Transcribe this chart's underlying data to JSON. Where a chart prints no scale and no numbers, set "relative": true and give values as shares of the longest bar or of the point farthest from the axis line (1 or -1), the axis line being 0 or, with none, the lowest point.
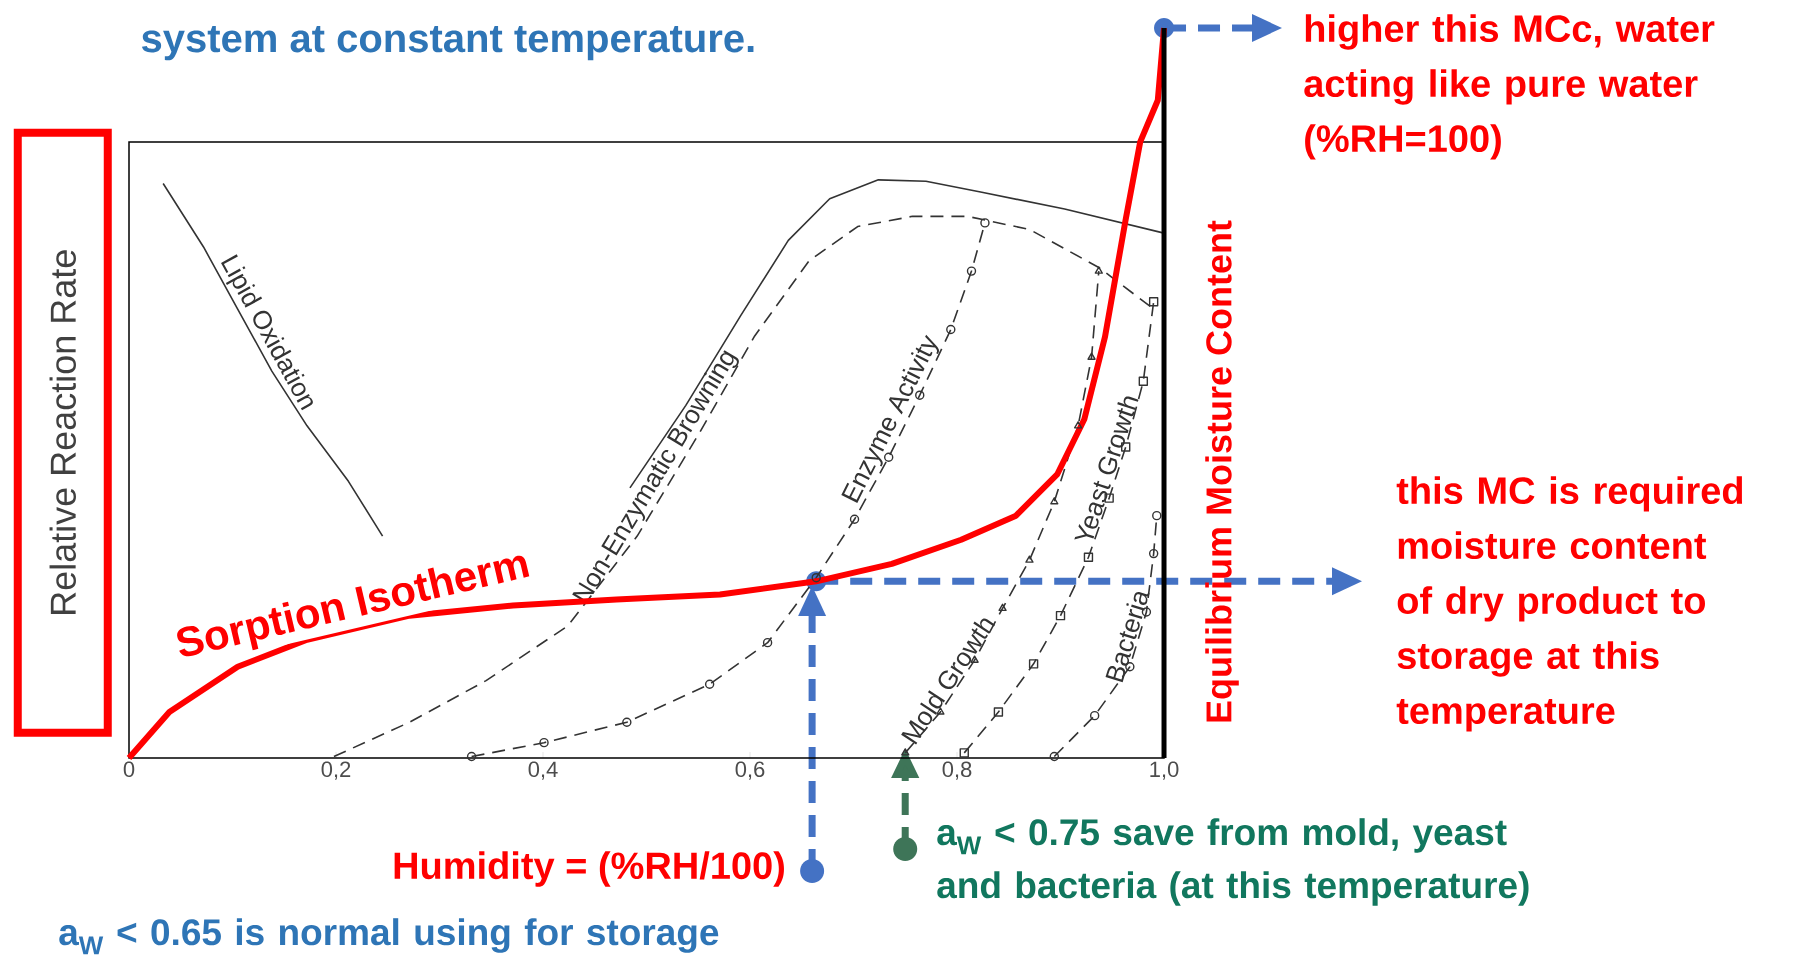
{
  "chart_data": {
    "type": "line",
    "relative": true,
    "title": "system at constant temperature.",
    "ylabel": "Relative Reaction Rate",
    "y2label": "Equilibrium Moisture Content",
    "xlim": [
      0,
      1.0
    ],
    "xticks": [
      0,
      {
        "value": 0.2,
        "label": "0,2"
      },
      {
        "value": 0.4,
        "label": "0,4"
      },
      {
        "value": 0.6,
        "label": "0,6"
      },
      {
        "value": 0.8,
        "label": "0,8"
      },
      {
        "value": 1.0,
        "label": "1,0"
      }
    ],
    "series": [
      {
        "name": "Lipid Oxidation",
        "color": "#333333",
        "marker": "none",
        "line_style": "solid",
        "x": [
          0.033,
          0.072,
          0.105,
          0.138,
          0.172,
          0.212,
          0.245,
          0.36,
          0.484,
          0.538,
          0.591,
          0.637,
          0.677,
          0.724,
          0.77,
          0.824,
          0.904,
          1.0
        ],
        "values": [
          0.787,
          0.7,
          0.615,
          0.53,
          0.455,
          0.379,
          0.304,
          null,
          0.37,
          0.483,
          0.606,
          0.709,
          0.766,
          0.792,
          0.79,
          0.775,
          0.752,
          0.719
        ]
      },
      {
        "name": "Non-Enzymatic Browning",
        "color": "#333333",
        "marker": "none",
        "line_style": "dashed",
        "x": [
          0.198,
          0.271,
          0.345,
          0.424,
          0.491,
          0.551,
          0.604,
          0.657,
          0.704,
          0.757,
          0.81,
          0.87,
          0.937,
          0.99
        ],
        "values": [
          0.002,
          0.049,
          0.106,
          0.181,
          0.304,
          0.445,
          0.577,
          0.681,
          0.728,
          0.742,
          0.742,
          0.724,
          0.672,
          0.615
        ]
      },
      {
        "name": "Enzyme Activity",
        "color": "#333333",
        "marker": "circle",
        "line_style": "dashed",
        "x": [
          0.331,
          0.401,
          0.481,
          0.561,
          0.617,
          0.664,
          0.701,
          0.734,
          0.764,
          0.794,
          0.814,
          0.827
        ],
        "values": [
          0.002,
          0.021,
          0.049,
          0.101,
          0.158,
          0.247,
          0.327,
          0.412,
          0.497,
          0.587,
          0.667,
          0.733
        ]
      },
      {
        "name": "Mold Growth",
        "color": "#333333",
        "marker": "triangle",
        "line_style": "dashed",
        "x": [
          0.75,
          0.784,
          0.817,
          0.844,
          0.87,
          0.894,
          0.917,
          0.93,
          0.937
        ],
        "values": [
          0.007,
          0.063,
          0.134,
          0.205,
          0.271,
          0.351,
          0.455,
          0.549,
          0.667
        ]
      },
      {
        "name": "Yeast Growth",
        "color": "#333333",
        "marker": "square",
        "line_style": "dashed",
        "x": [
          0.807,
          0.84,
          0.874,
          0.9,
          0.927,
          0.947,
          0.963,
          0.98,
          0.99
        ],
        "values": [
          0.007,
          0.063,
          0.129,
          0.195,
          0.275,
          0.356,
          0.426,
          0.516,
          0.625
        ]
      },
      {
        "name": "Bacteria",
        "color": "#333333",
        "marker": "circle",
        "line_style": "dashed",
        "x": [
          0.894,
          0.933,
          0.967,
          0.983,
          0.99,
          0.993
        ],
        "values": [
          0.002,
          0.058,
          0.125,
          0.2,
          0.28,
          0.332
        ]
      },
      {
        "name": "Sorption Isotherm",
        "color": "#ff0000",
        "marker": "none",
        "line_style": "solid",
        "x": [
          0,
          0.039,
          0.105,
          0.172,
          0.271,
          0.371,
          0.471,
          0.571,
          0.664,
          0.737,
          0.804,
          0.857,
          0.897,
          0.923,
          0.943,
          0.963,
          0.977,
          0.994,
          1.0
        ],
        "values": [
          0,
          0.063,
          0.125,
          0.162,
          0.195,
          0.209,
          0.217,
          0.224,
          0.242,
          0.266,
          0.299,
          0.332,
          0.389,
          0.464,
          0.577,
          0.738,
          0.844,
          0.901,
          1.0
        ]
      }
    ],
    "ref_lines": [
      {
        "axis": "y",
        "value": 1.0,
        "label": "higher this MCc, water acting like pure water (%RH=100)",
        "color": "#4472c4",
        "line_style": "dashed"
      },
      {
        "axis": "y",
        "value": 0.242,
        "label": "this MC is required moisture content of dry product to storage at this temperature",
        "color": "#4472c4",
        "line_style": "dashed"
      },
      {
        "axis": "x",
        "value": 0.66,
        "label": "Humidity = (%RH/100)",
        "color": "#4472c4",
        "line_style": "dashed"
      }
    ],
    "annotations": [
      {
        "text": "a$_{W}$ < 0.75 save from mold, yeast and bacteria (at this temperature)",
        "x": 0.75,
        "y": 0
      },
      "a$_{W}$ < 0.65 is normal using for storage"
    ]
  }
}
